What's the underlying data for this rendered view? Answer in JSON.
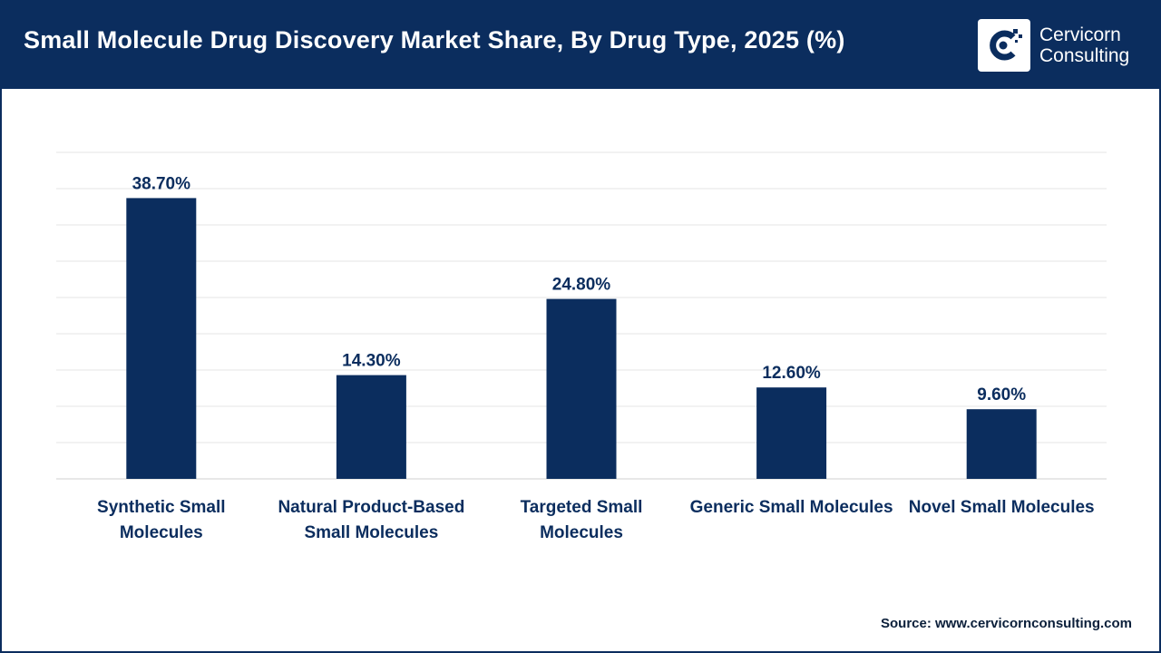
{
  "header": {
    "title": "Small Molecule Drug Discovery Market Share, By Drug Type, 2025 (%)",
    "logo_line1": "Cervicorn",
    "logo_line2": "Consulting"
  },
  "footer": {
    "source": "Source: www.cervicornconsulting.com"
  },
  "colors": {
    "header_bg": "#0b2d5e",
    "bar": "#0b2d5e",
    "label": "#0b2d5e",
    "grid": "#e6e6e6"
  },
  "chart_data": {
    "type": "bar",
    "title": "Small Molecule Drug Discovery Market Share, By Drug Type, 2025 (%)",
    "categories": [
      [
        "Synthetic Small",
        "Molecules"
      ],
      [
        "Natural Product-Based",
        "Small Molecules"
      ],
      [
        "Targeted Small",
        "Molecules"
      ],
      [
        "Generic Small Molecules"
      ],
      [
        "Novel Small Molecules"
      ]
    ],
    "values": [
      38.7,
      14.3,
      24.8,
      12.6,
      9.6
    ],
    "value_labels": [
      "38.70%",
      "14.30%",
      "24.80%",
      "12.60%",
      "9.60%"
    ],
    "xlabel": "",
    "ylabel": "",
    "ylim": [
      0,
      45
    ],
    "grid": true,
    "legend": "none"
  }
}
